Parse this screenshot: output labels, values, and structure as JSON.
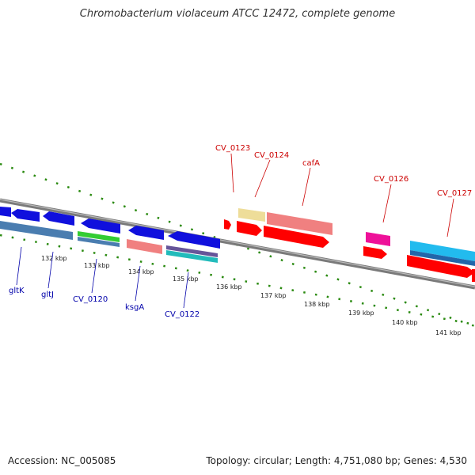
{
  "title": "Chromobacterium violaceum ATCC 12472, complete genome",
  "footer": {
    "accession": "Accession: NC_005085",
    "summary": "Topology: circular; Length: 4,751,080 bp; Genes: 4,530"
  },
  "colors": {
    "backbone": "#888888",
    "tick": "#2a8a10",
    "reverse_label": "#0000aa",
    "forward_label": "#cc0000"
  },
  "ticks": [
    "132 kbp",
    "133 kbp",
    "134 kbp",
    "135 kbp",
    "136 kbp",
    "137 kbp",
    "138 kbp",
    "139 kbp",
    "140 kbp",
    "141 kbp"
  ],
  "genes": {
    "reverse": [
      "gltK",
      "gltJ",
      "CV_0120",
      "ksgA",
      "CV_0122"
    ],
    "forward": [
      "CV_0123",
      "CV_0124",
      "cafA",
      "CV_0126",
      "CV_0127"
    ]
  }
}
